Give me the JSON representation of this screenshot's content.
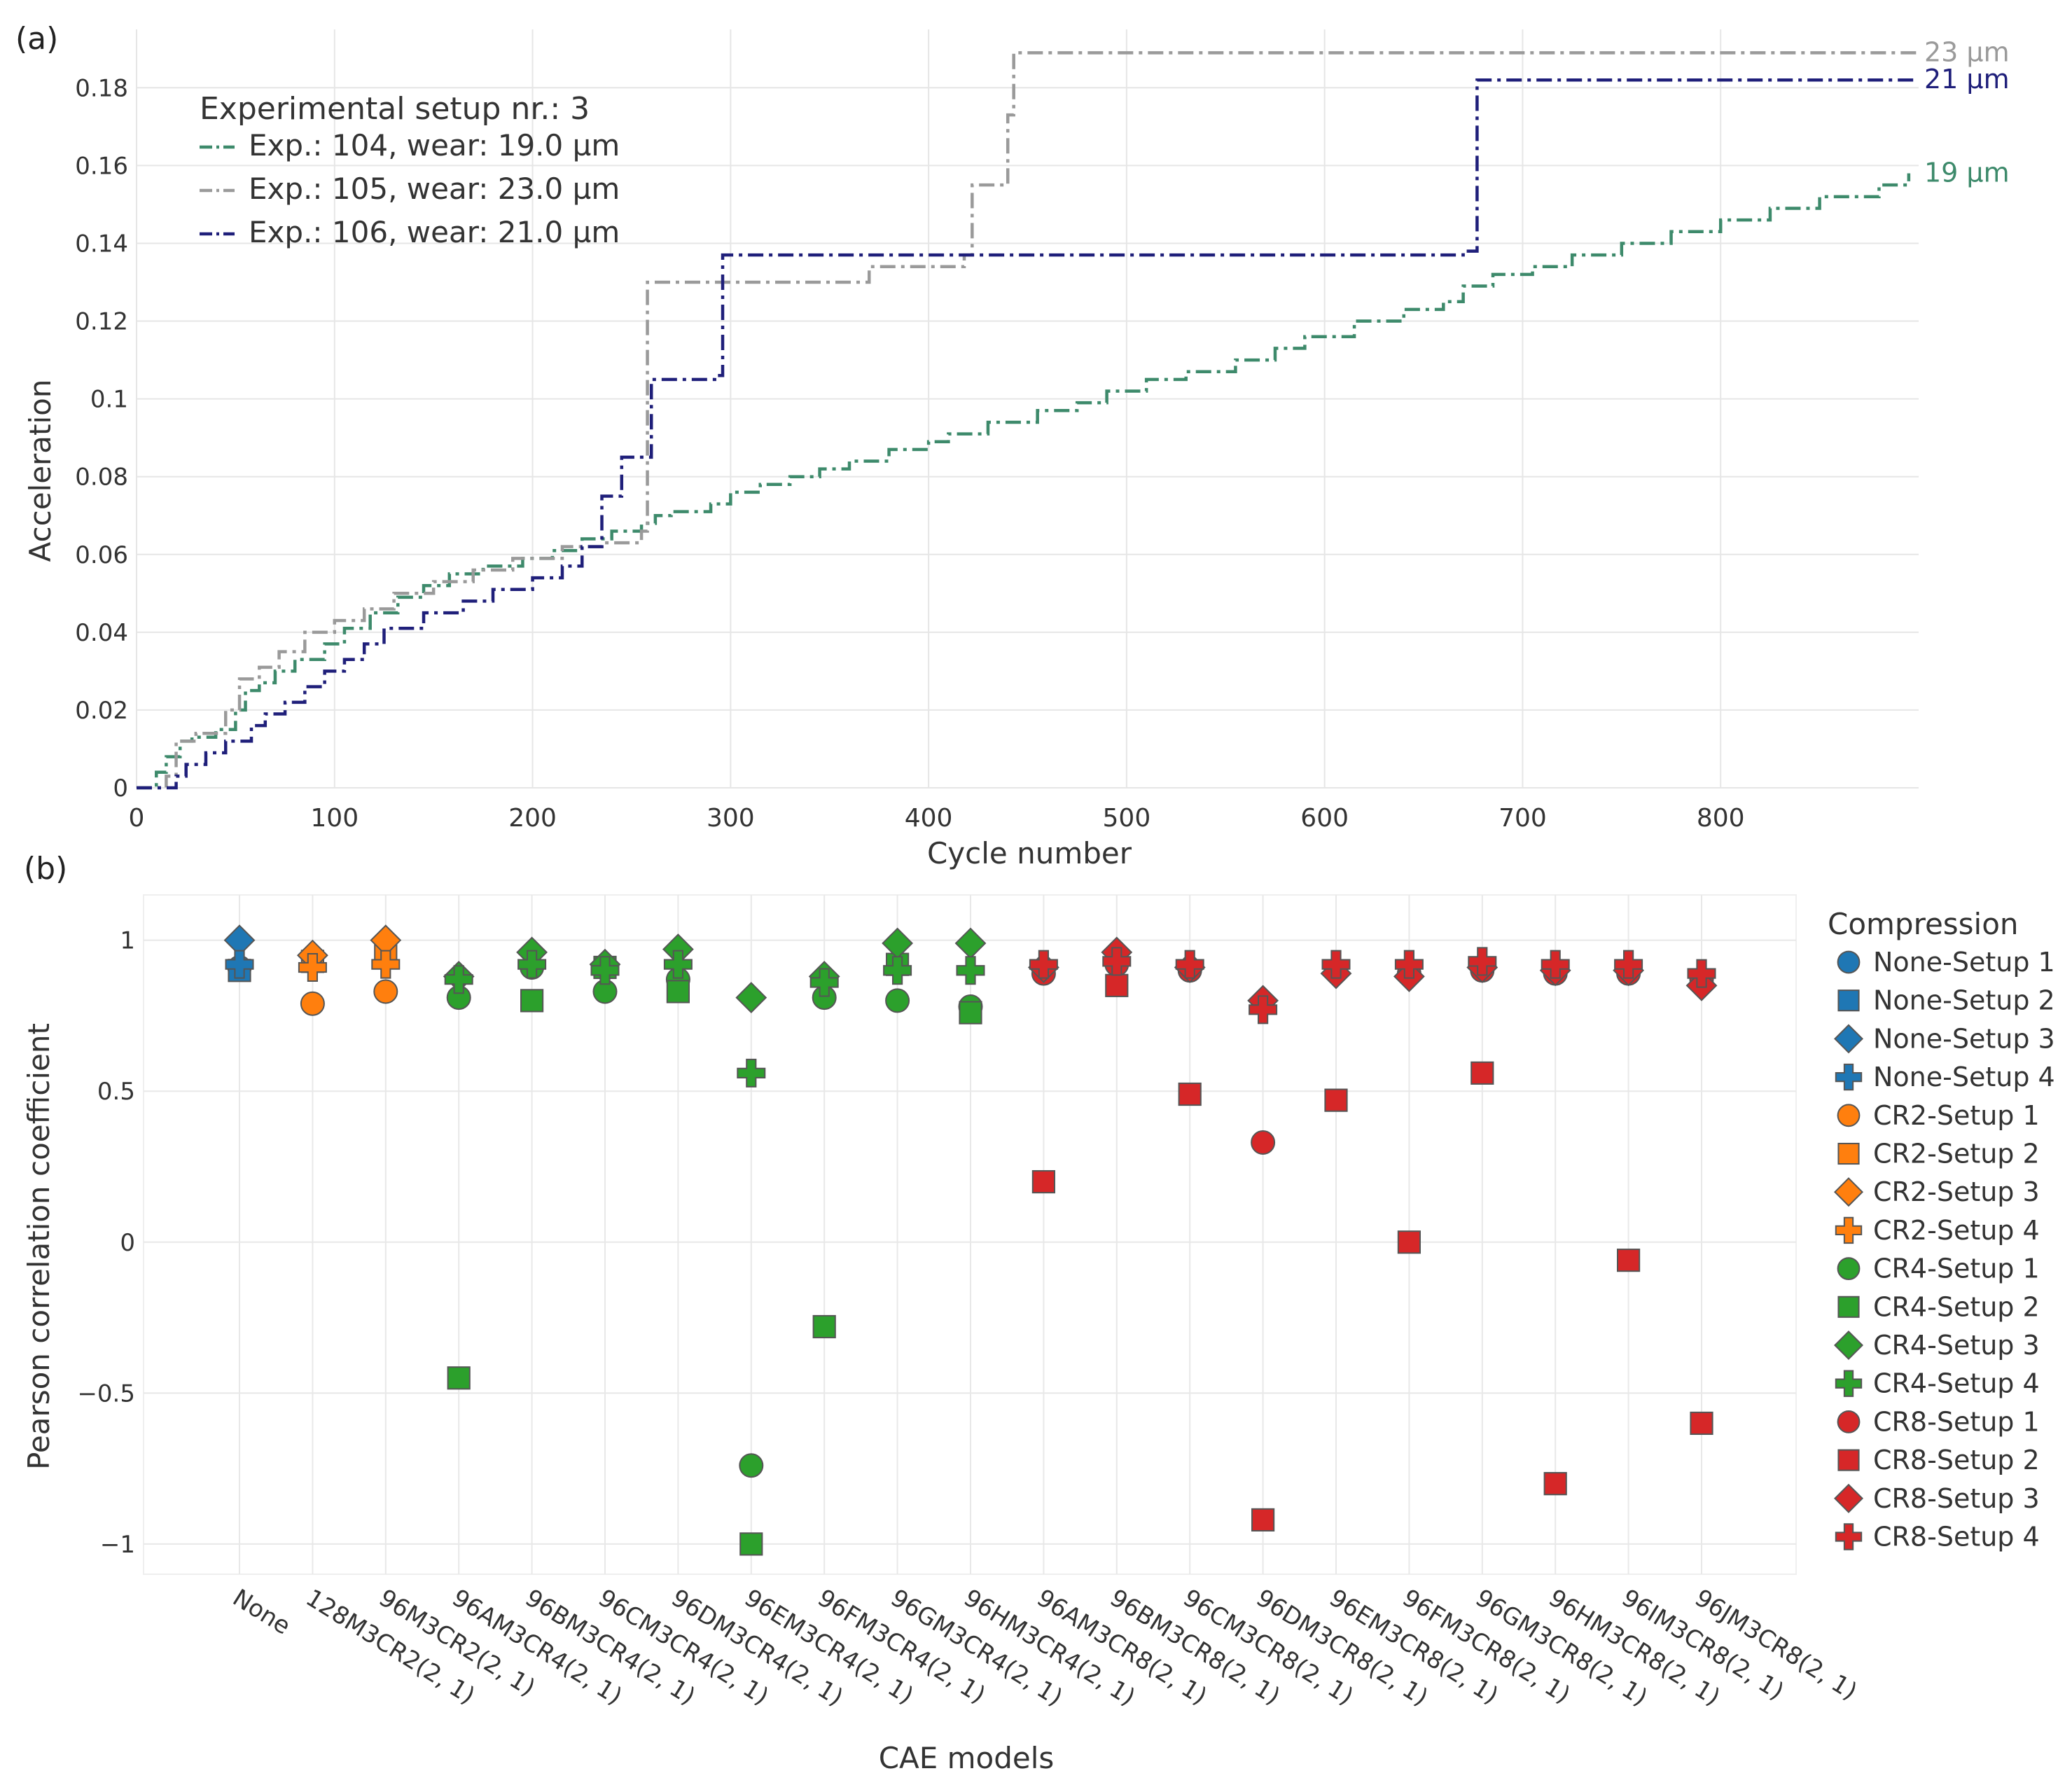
{
  "chart_data": [
    {
      "panel": "(a)",
      "type": "line",
      "xlabel": "Cycle number",
      "ylabel": "Acceleration",
      "xlim": [
        0,
        900
      ],
      "ylim": [
        0,
        0.195
      ],
      "xticks": [
        0,
        100,
        200,
        300,
        400,
        500,
        600,
        700,
        800
      ],
      "xtick_labels": [
        "0",
        "100",
        "200",
        "300",
        "400",
        "500",
        "600",
        "700",
        "800"
      ],
      "yticks": [
        0,
        0.02,
        0.04,
        0.06,
        0.08,
        0.1,
        0.12,
        0.14,
        0.16,
        0.18
      ],
      "ytick_labels": [
        "0",
        "0.02",
        "0.04",
        "0.06",
        "0.08",
        "0.1",
        "0.12",
        "0.14",
        "0.16",
        "0.18"
      ],
      "grid": true,
      "legend_title": "Experimental setup nr.: 3",
      "legend_position": "top-left",
      "series": [
        {
          "name": "Exp.: 104, wear: 19.0 µm",
          "end_label": "19 µm",
          "color": "#3d8a6b",
          "x": [
            0,
            10,
            15,
            22,
            28,
            40,
            50,
            55,
            62,
            70,
            80,
            95,
            105,
            118,
            132,
            145,
            158,
            175,
            195,
            210,
            225,
            240,
            255,
            262,
            270,
            290,
            300,
            315,
            330,
            345,
            360,
            380,
            400,
            410,
            430,
            455,
            475,
            490,
            510,
            530,
            555,
            575,
            590,
            615,
            640,
            660,
            670,
            685,
            705,
            725,
            750,
            775,
            800,
            825,
            850,
            880,
            895
          ],
          "y": [
            0,
            0.004,
            0.008,
            0.012,
            0.013,
            0.015,
            0.02,
            0.025,
            0.027,
            0.03,
            0.033,
            0.037,
            0.041,
            0.045,
            0.049,
            0.052,
            0.055,
            0.057,
            0.059,
            0.061,
            0.064,
            0.066,
            0.068,
            0.07,
            0.071,
            0.073,
            0.076,
            0.078,
            0.08,
            0.082,
            0.084,
            0.087,
            0.089,
            0.091,
            0.094,
            0.097,
            0.099,
            0.102,
            0.105,
            0.107,
            0.11,
            0.113,
            0.116,
            0.12,
            0.123,
            0.125,
            0.129,
            0.132,
            0.134,
            0.137,
            0.14,
            0.143,
            0.146,
            0.149,
            0.152,
            0.155,
            0.158
          ]
        },
        {
          "name": "Exp.: 105, wear: 23.0 µm",
          "end_label": "23 µm",
          "color": "#9a9a9a",
          "x": [
            0,
            15,
            20,
            30,
            45,
            52,
            62,
            72,
            85,
            100,
            115,
            130,
            150,
            170,
            190,
            215,
            235,
            255,
            258,
            370,
            418,
            422,
            440,
            443,
            900
          ],
          "y": [
            0,
            0.003,
            0.012,
            0.014,
            0.02,
            0.028,
            0.031,
            0.035,
            0.04,
            0.043,
            0.046,
            0.05,
            0.053,
            0.056,
            0.059,
            0.062,
            0.063,
            0.066,
            0.13,
            0.134,
            0.137,
            0.155,
            0.173,
            0.189,
            0.189
          ]
        },
        {
          "name": "Exp.: 106, wear: 21.0 µm",
          "end_label": "21 µm",
          "color": "#1f1f7a",
          "x": [
            0,
            20,
            25,
            35,
            45,
            58,
            65,
            75,
            85,
            95,
            105,
            115,
            125,
            145,
            165,
            180,
            200,
            215,
            225,
            235,
            245,
            260,
            292,
            296,
            670,
            677,
            900
          ],
          "y": [
            0,
            0.003,
            0.006,
            0.009,
            0.012,
            0.016,
            0.019,
            0.022,
            0.026,
            0.03,
            0.033,
            0.037,
            0.041,
            0.045,
            0.048,
            0.051,
            0.054,
            0.057,
            0.062,
            0.075,
            0.085,
            0.105,
            0.106,
            0.137,
            0.138,
            0.182,
            0.182
          ]
        }
      ]
    },
    {
      "panel": "(b)",
      "type": "scatter",
      "xlabel": "CAE models",
      "ylabel": "Pearson correlation coefficient",
      "ylim": [
        -1.1,
        1.15
      ],
      "yticks": [
        -1,
        -0.5,
        0,
        0.5,
        1
      ],
      "ytick_labels": [
        "−1",
        "−0.5",
        "0",
        "0.5",
        "1"
      ],
      "grid": true,
      "legend_title": "Compression",
      "legend_position": "right",
      "categories": [
        "None",
        "128M3CR2(2, 1)",
        "96M3CR2(2, 1)",
        "96AM3CR4(2, 1)",
        "96BM3CR4(2, 1)",
        "96CM3CR4(2, 1)",
        "96DM3CR4(2, 1)",
        "96EM3CR4(2, 1)",
        "96FM3CR4(2, 1)",
        "96GM3CR4(2, 1)",
        "96HM3CR4(2, 1)",
        "96AM3CR8(2, 1)",
        "96BM3CR8(2, 1)",
        "96CM3CR8(2, 1)",
        "96DM3CR8(2, 1)",
        "96EM3CR8(2, 1)",
        "96FM3CR8(2, 1)",
        "96GM3CR8(2, 1)",
        "96HM3CR8(2, 1)",
        "96IM3CR8(2, 1)",
        "96JM3CR8(2, 1)"
      ],
      "series": [
        {
          "name": "None-Setup 1",
          "color": "#1f77b4",
          "symbol": "circle",
          "x": [
            "None"
          ],
          "values": [
            0.91
          ]
        },
        {
          "name": "None-Setup 2",
          "color": "#1f77b4",
          "symbol": "square",
          "x": [
            "None"
          ],
          "values": [
            0.9
          ]
        },
        {
          "name": "None-Setup 3",
          "color": "#1f77b4",
          "symbol": "diamond",
          "x": [
            "None"
          ],
          "values": [
            1.0
          ]
        },
        {
          "name": "None-Setup 4",
          "color": "#1f77b4",
          "symbol": "cross",
          "x": [
            "None"
          ],
          "values": [
            0.92
          ]
        },
        {
          "name": "CR2-Setup 1",
          "color": "#ff7f0e",
          "symbol": "circle",
          "x": [
            "128M3CR2(2, 1)",
            "96M3CR2(2, 1)"
          ],
          "values": [
            0.79,
            0.83
          ]
        },
        {
          "name": "CR2-Setup 2",
          "color": "#ff7f0e",
          "symbol": "square",
          "x": [
            "128M3CR2(2, 1)",
            "96M3CR2(2, 1)"
          ],
          "values": [
            0.93,
            0.95
          ]
        },
        {
          "name": "CR2-Setup 3",
          "color": "#ff7f0e",
          "symbol": "diamond",
          "x": [
            "128M3CR2(2, 1)",
            "96M3CR2(2, 1)"
          ],
          "values": [
            0.95,
            1.0
          ]
        },
        {
          "name": "CR2-Setup 4",
          "color": "#ff7f0e",
          "symbol": "cross",
          "x": [
            "128M3CR2(2, 1)",
            "96M3CR2(2, 1)"
          ],
          "values": [
            0.91,
            0.92
          ]
        },
        {
          "name": "CR4-Setup 1",
          "color": "#2ca02c",
          "symbol": "circle",
          "x": [
            "96AM3CR4(2, 1)",
            "96BM3CR4(2, 1)",
            "96CM3CR4(2, 1)",
            "96DM3CR4(2, 1)",
            "96EM3CR4(2, 1)",
            "96FM3CR4(2, 1)",
            "96GM3CR4(2, 1)",
            "96HM3CR4(2, 1)"
          ],
          "values": [
            0.81,
            0.91,
            0.83,
            0.87,
            -0.74,
            0.81,
            0.8,
            0.78
          ]
        },
        {
          "name": "CR4-Setup 2",
          "color": "#2ca02c",
          "symbol": "square",
          "x": [
            "96AM3CR4(2, 1)",
            "96BM3CR4(2, 1)",
            "96CM3CR4(2, 1)",
            "96DM3CR4(2, 1)",
            "96EM3CR4(2, 1)",
            "96FM3CR4(2, 1)",
            "96GM3CR4(2, 1)",
            "96HM3CR4(2, 1)"
          ],
          "values": [
            -0.45,
            0.8,
            0.91,
            0.83,
            -1.0,
            -0.28,
            0.92,
            0.76
          ]
        },
        {
          "name": "CR4-Setup 3",
          "color": "#2ca02c",
          "symbol": "diamond",
          "x": [
            "96AM3CR4(2, 1)",
            "96BM3CR4(2, 1)",
            "96CM3CR4(2, 1)",
            "96DM3CR4(2, 1)",
            "96EM3CR4(2, 1)",
            "96FM3CR4(2, 1)",
            "96GM3CR4(2, 1)",
            "96HM3CR4(2, 1)"
          ],
          "values": [
            0.88,
            0.96,
            0.92,
            0.97,
            0.81,
            0.88,
            0.99,
            0.99
          ]
        },
        {
          "name": "CR4-Setup 4",
          "color": "#2ca02c",
          "symbol": "cross",
          "x": [
            "96AM3CR4(2, 1)",
            "96BM3CR4(2, 1)",
            "96CM3CR4(2, 1)",
            "96DM3CR4(2, 1)",
            "96EM3CR4(2, 1)",
            "96FM3CR4(2, 1)",
            "96GM3CR4(2, 1)",
            "96HM3CR4(2, 1)"
          ],
          "values": [
            0.87,
            0.92,
            0.9,
            0.92,
            0.56,
            0.86,
            0.9,
            0.9
          ]
        },
        {
          "name": "CR8-Setup 1",
          "color": "#d62728",
          "symbol": "circle",
          "x": [
            "96AM3CR8(2, 1)",
            "96BM3CR8(2, 1)",
            "96CM3CR8(2, 1)",
            "96DM3CR8(2, 1)",
            "96EM3CR8(2, 1)",
            "96FM3CR8(2, 1)",
            "96GM3CR8(2, 1)",
            "96HM3CR8(2, 1)",
            "96IM3CR8(2, 1)",
            "96JM3CR8(2, 1)"
          ],
          "values": [
            0.89,
            0.92,
            0.9,
            0.33,
            0.9,
            0.89,
            0.9,
            0.89,
            0.89,
            0.87
          ]
        },
        {
          "name": "CR8-Setup 2",
          "color": "#d62728",
          "symbol": "square",
          "x": [
            "96AM3CR8(2, 1)",
            "96BM3CR8(2, 1)",
            "96CM3CR8(2, 1)",
            "96DM3CR8(2, 1)",
            "96EM3CR8(2, 1)",
            "96FM3CR8(2, 1)",
            "96GM3CR8(2, 1)",
            "96HM3CR8(2, 1)",
            "96IM3CR8(2, 1)",
            "96JM3CR8(2, 1)"
          ],
          "values": [
            0.2,
            0.85,
            0.49,
            -0.92,
            0.47,
            0.0,
            0.56,
            -0.8,
            -0.06,
            -0.6
          ]
        },
        {
          "name": "CR8-Setup 3",
          "color": "#d62728",
          "symbol": "diamond",
          "x": [
            "96AM3CR8(2, 1)",
            "96BM3CR8(2, 1)",
            "96CM3CR8(2, 1)",
            "96DM3CR8(2, 1)",
            "96EM3CR8(2, 1)",
            "96FM3CR8(2, 1)",
            "96GM3CR8(2, 1)",
            "96HM3CR8(2, 1)",
            "96IM3CR8(2, 1)",
            "96JM3CR8(2, 1)"
          ],
          "values": [
            0.91,
            0.96,
            0.91,
            0.8,
            0.89,
            0.88,
            0.91,
            0.9,
            0.9,
            0.85
          ]
        },
        {
          "name": "CR8-Setup 4",
          "color": "#d62728",
          "symbol": "cross",
          "x": [
            "96AM3CR8(2, 1)",
            "96BM3CR8(2, 1)",
            "96CM3CR8(2, 1)",
            "96DM3CR8(2, 1)",
            "96EM3CR8(2, 1)",
            "96FM3CR8(2, 1)",
            "96GM3CR8(2, 1)",
            "96HM3CR8(2, 1)",
            "96IM3CR8(2, 1)",
            "96JM3CR8(2, 1)"
          ],
          "values": [
            0.92,
            0.93,
            0.92,
            0.77,
            0.92,
            0.92,
            0.93,
            0.92,
            0.92,
            0.89
          ]
        }
      ]
    }
  ]
}
